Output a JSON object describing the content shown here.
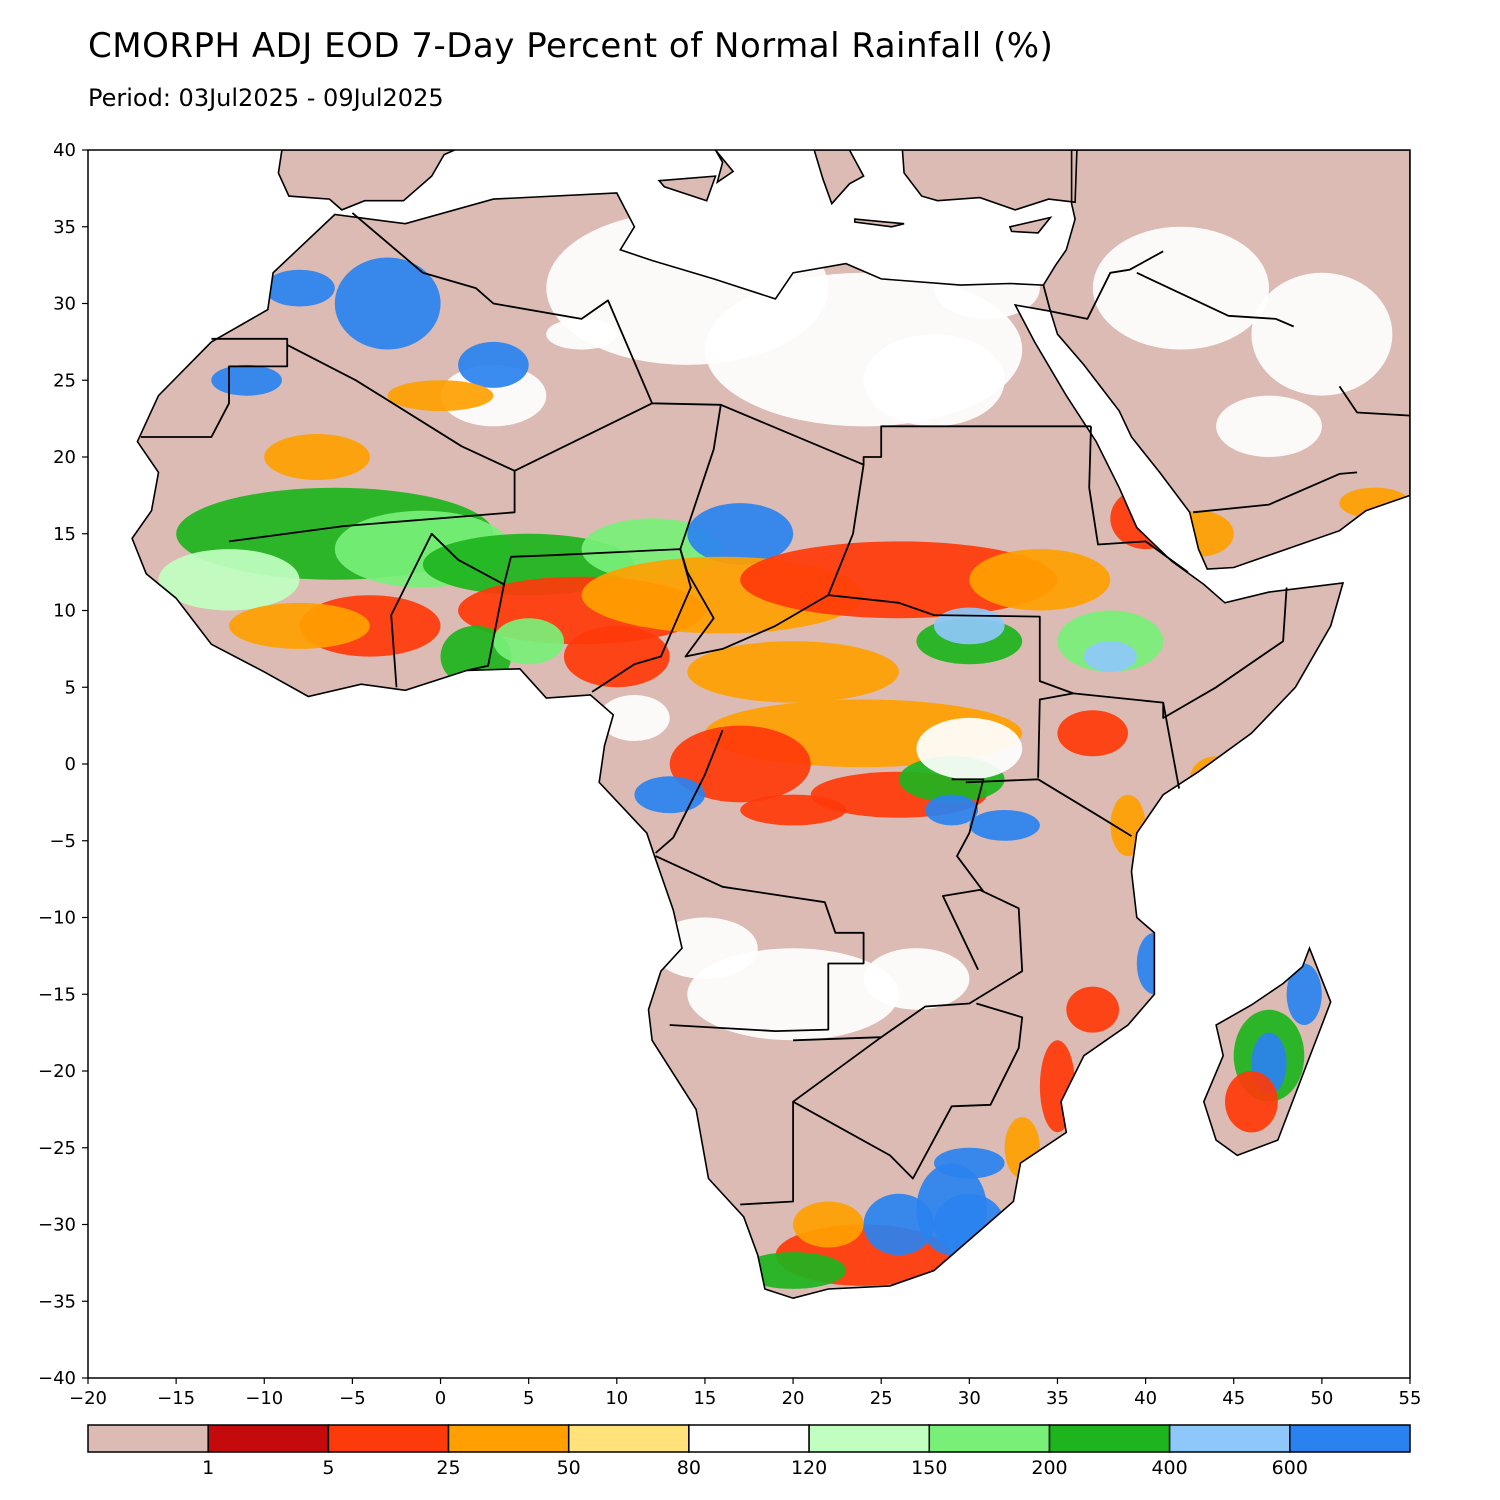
{
  "title": "CMORPH ADJ EOD 7-Day Percent of Normal Rainfall (%)",
  "subtitle": "Period: 03Jul2025 - 09Jul2025",
  "map": {
    "region": "Africa",
    "lon_range": [
      -20,
      55
    ],
    "lat_range": [
      -40,
      40
    ],
    "x_ticks": [
      "-20",
      "-15",
      "-10",
      "-5",
      "0",
      "5",
      "10",
      "15",
      "20",
      "25",
      "30",
      "35",
      "40",
      "45",
      "50",
      "55"
    ],
    "y_ticks": [
      "40",
      "35",
      "30",
      "25",
      "20",
      "15",
      "10",
      "5",
      "0",
      "-5",
      "-10",
      "-15",
      "-20",
      "-25",
      "-30",
      "-35",
      "-40"
    ]
  },
  "colorbar": {
    "colors": [
      "#dbbbb3",
      "#c40a0a",
      "#ff3a0a",
      "#ff9f00",
      "#ffe27a",
      "#ffffff",
      "#c0ffc0",
      "#78f078",
      "#1eb41e",
      "#8ec8fa",
      "#2a82f0"
    ],
    "labels": [
      "1",
      "5",
      "25",
      "50",
      "80",
      "120",
      "150",
      "200",
      "400",
      "600"
    ]
  }
}
